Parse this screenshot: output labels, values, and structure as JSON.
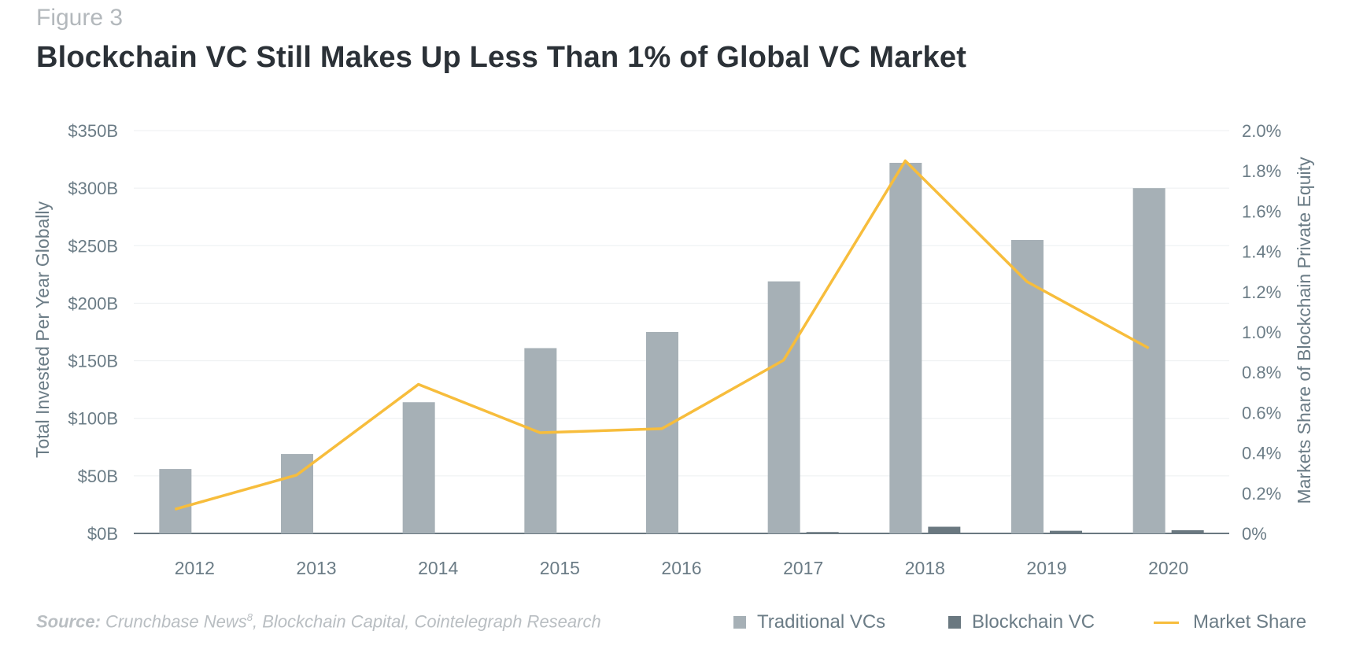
{
  "header": {
    "figure_label": "Figure 3",
    "title": "Blockchain VC Still Makes Up Less Than 1% of Global VC Market"
  },
  "source": {
    "label": "Source:",
    "text": " Crunchbase News",
    "superscript": "8",
    "text_after": ", Blockchain Capital, Cointelegraph Research"
  },
  "colors": {
    "traditional": "#a6b0b6",
    "blockchain": "#6a7880",
    "market_share": "#f7bd3c",
    "axis_text": "#6b7c86",
    "grid": "#eceff1",
    "baseline": "#6a7880"
  },
  "chart_data": {
    "type": "bar",
    "categories": [
      "2012",
      "2013",
      "2014",
      "2015",
      "2016",
      "2017",
      "2018",
      "2019",
      "2020"
    ],
    "series": [
      {
        "name": "Traditional VCs",
        "type": "bar",
        "axis": "left",
        "values": [
          56,
          69,
          114,
          161,
          175,
          219,
          322,
          255,
          300
        ]
      },
      {
        "name": "Blockchain VC",
        "type": "bar",
        "axis": "left",
        "values": [
          0,
          0,
          0,
          0,
          0,
          1.2,
          5.8,
          2.3,
          2.8
        ]
      },
      {
        "name": "Market Share",
        "type": "line",
        "axis": "right",
        "values": [
          0.12,
          0.29,
          0.74,
          0.5,
          0.52,
          0.86,
          1.85,
          1.25,
          0.92
        ]
      }
    ],
    "ylabel": "Total Invested Per Year Globally",
    "y2label": "Markets Share of Blockchain Private Equity",
    "ylim": [
      0,
      350
    ],
    "y2lim": [
      0,
      2.0
    ],
    "yticks": [
      0,
      50,
      100,
      150,
      200,
      250,
      300,
      350
    ],
    "ytick_labels": [
      "$0B",
      "$50B",
      "$100B",
      "$150B",
      "$200B",
      "$250B",
      "$300B",
      "$350B"
    ],
    "y2ticks": [
      0,
      0.2,
      0.4,
      0.6,
      0.8,
      1.0,
      1.2,
      1.4,
      1.6,
      1.8,
      2.0
    ],
    "y2tick_labels": [
      "0%",
      "0.2%",
      "0.4%",
      "0.6%",
      "0.8%",
      "1.0%",
      "1.2%",
      "1.4%",
      "1.6%",
      "1.8%",
      "2.0%"
    ],
    "grid": true,
    "legend": "bottom-right"
  }
}
